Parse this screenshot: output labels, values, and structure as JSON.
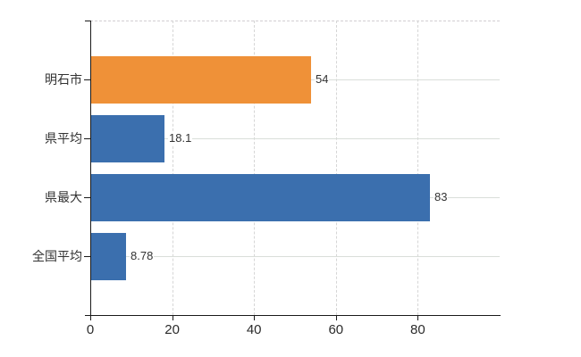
{
  "chart_data": {
    "type": "bar",
    "orientation": "horizontal",
    "title": "",
    "categories": [
      "明石市",
      "県平均",
      "県最大",
      "全国平均"
    ],
    "values": [
      54,
      18.1,
      83,
      8.78
    ],
    "value_labels": [
      "54",
      "18.1",
      "83",
      "8.78"
    ],
    "series": [
      {
        "name": "明石市",
        "value": 54,
        "color": "#ef9138"
      },
      {
        "name": "県平均",
        "value": 18.1,
        "color": "#3b6fae"
      },
      {
        "name": "県最大",
        "value": 83,
        "color": "#3b6fae"
      },
      {
        "name": "全国平均",
        "value": 8.78,
        "color": "#3b6fae"
      }
    ],
    "xlabel": "",
    "ylabel": "",
    "xlim": [
      0,
      100
    ],
    "x_ticks": [
      0,
      20,
      40,
      60,
      80
    ],
    "x_tick_labels": [
      "0",
      "20",
      "40",
      "60",
      "80"
    ],
    "grid": {
      "vertical": "dashed",
      "horizontal": "solid",
      "top_border": "dashed"
    },
    "legend": "none"
  },
  "colors": {
    "highlight_bar": "#ef9138",
    "default_bar": "#3b6fae",
    "axis": "#1a1a1a",
    "grid_vertical": "#d6d6d6",
    "grid_horizontal": "#d9ded9",
    "text": "#333333",
    "background": "#ffffff"
  }
}
